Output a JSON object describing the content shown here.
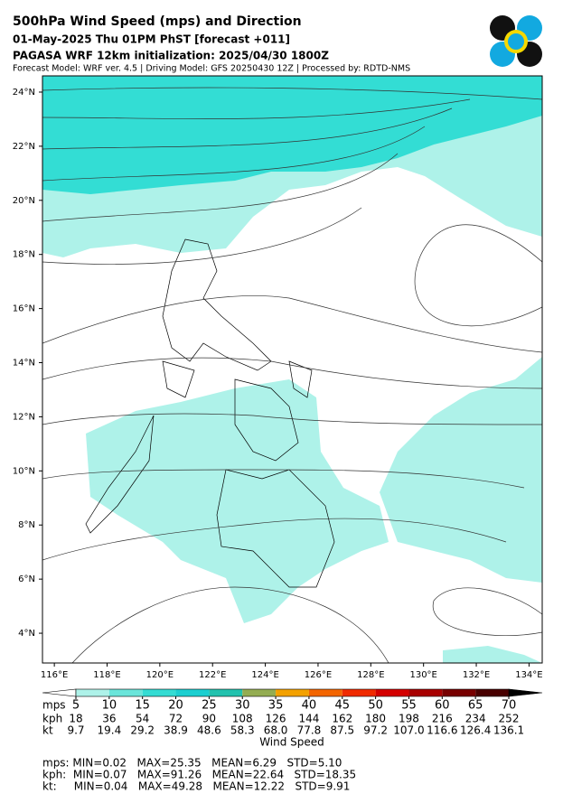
{
  "header": {
    "title": "500hPa Wind Speed (mps) and Direction",
    "line2": "01-May-2025 Thu 01PM PhST [forecast +011]",
    "line3": "PAGASA WRF 12km initialization: 2025/04/30 1800Z",
    "line4": "Forecast Model: WRF ver. 4.5 | Driving Model: GFS 20250430 12Z | Processed by: RDTD-NMS"
  },
  "map": {
    "lonlim": [
      115.55,
      134.5
    ],
    "latlim": [
      2.9,
      24.6
    ],
    "lat_ticks": [
      {
        "value": 4,
        "label": "4°N"
      },
      {
        "value": 6,
        "label": "6°N"
      },
      {
        "value": 8,
        "label": "8°N"
      },
      {
        "value": 10,
        "label": "10°N"
      },
      {
        "value": 12,
        "label": "12°N"
      },
      {
        "value": 14,
        "label": "14°N"
      },
      {
        "value": 16,
        "label": "16°N"
      },
      {
        "value": 18,
        "label": "18°N"
      },
      {
        "value": 20,
        "label": "20°N"
      },
      {
        "value": 22,
        "label": "22°N"
      },
      {
        "value": 24,
        "label": "24°N"
      }
    ],
    "lon_ticks": [
      {
        "value": 116,
        "label": "116°E"
      },
      {
        "value": 118,
        "label": "118°E"
      },
      {
        "value": 120,
        "label": "120°E"
      },
      {
        "value": 122,
        "label": "122°E"
      },
      {
        "value": 124,
        "label": "124°E"
      },
      {
        "value": 126,
        "label": "126°E"
      },
      {
        "value": 128,
        "label": "128°E"
      },
      {
        "value": 130,
        "label": "130°E"
      },
      {
        "value": 132,
        "label": "132°E"
      },
      {
        "value": 134,
        "label": "134°E"
      }
    ]
  },
  "colorbar": {
    "label": "Wind Speed",
    "mps_label": "mps",
    "kph_label": "kph",
    "kt_label": "kt",
    "levels": [
      5,
      10,
      15,
      20,
      25,
      30,
      35,
      40,
      45,
      50,
      55,
      60,
      65,
      70
    ],
    "kph": [
      18,
      36,
      54,
      72,
      90,
      108,
      126,
      144,
      162,
      180,
      198,
      216,
      234,
      252
    ],
    "kt": [
      "9.7",
      "19.4",
      "29.2",
      "38.9",
      "48.6",
      "58.3",
      "68.0",
      "77.8",
      "87.5",
      "97.2",
      "107.0",
      "116.6",
      "126.4",
      "136.1"
    ],
    "colors": [
      "#aef2e9",
      "#6ae5da",
      "#34dcd3",
      "#1ccfd0",
      "#22c2ae",
      "#94ad52",
      "#f3a100",
      "#f36500",
      "#f02a00",
      "#d40000",
      "#a80000",
      "#780000",
      "#480000"
    ],
    "extend_colors": [
      "#ffffff",
      "#000000"
    ]
  },
  "stats": [
    "mps: MIN=0.02   MAX=25.35   MEAN=6.29   STD=5.10",
    "kph:  MIN=0.07   MAX=91.26   MEAN=22.64   STD=18.35",
    "kt:     MIN=0.04   MAX=49.28   MEAN=12.22   STD=9.91"
  ]
}
